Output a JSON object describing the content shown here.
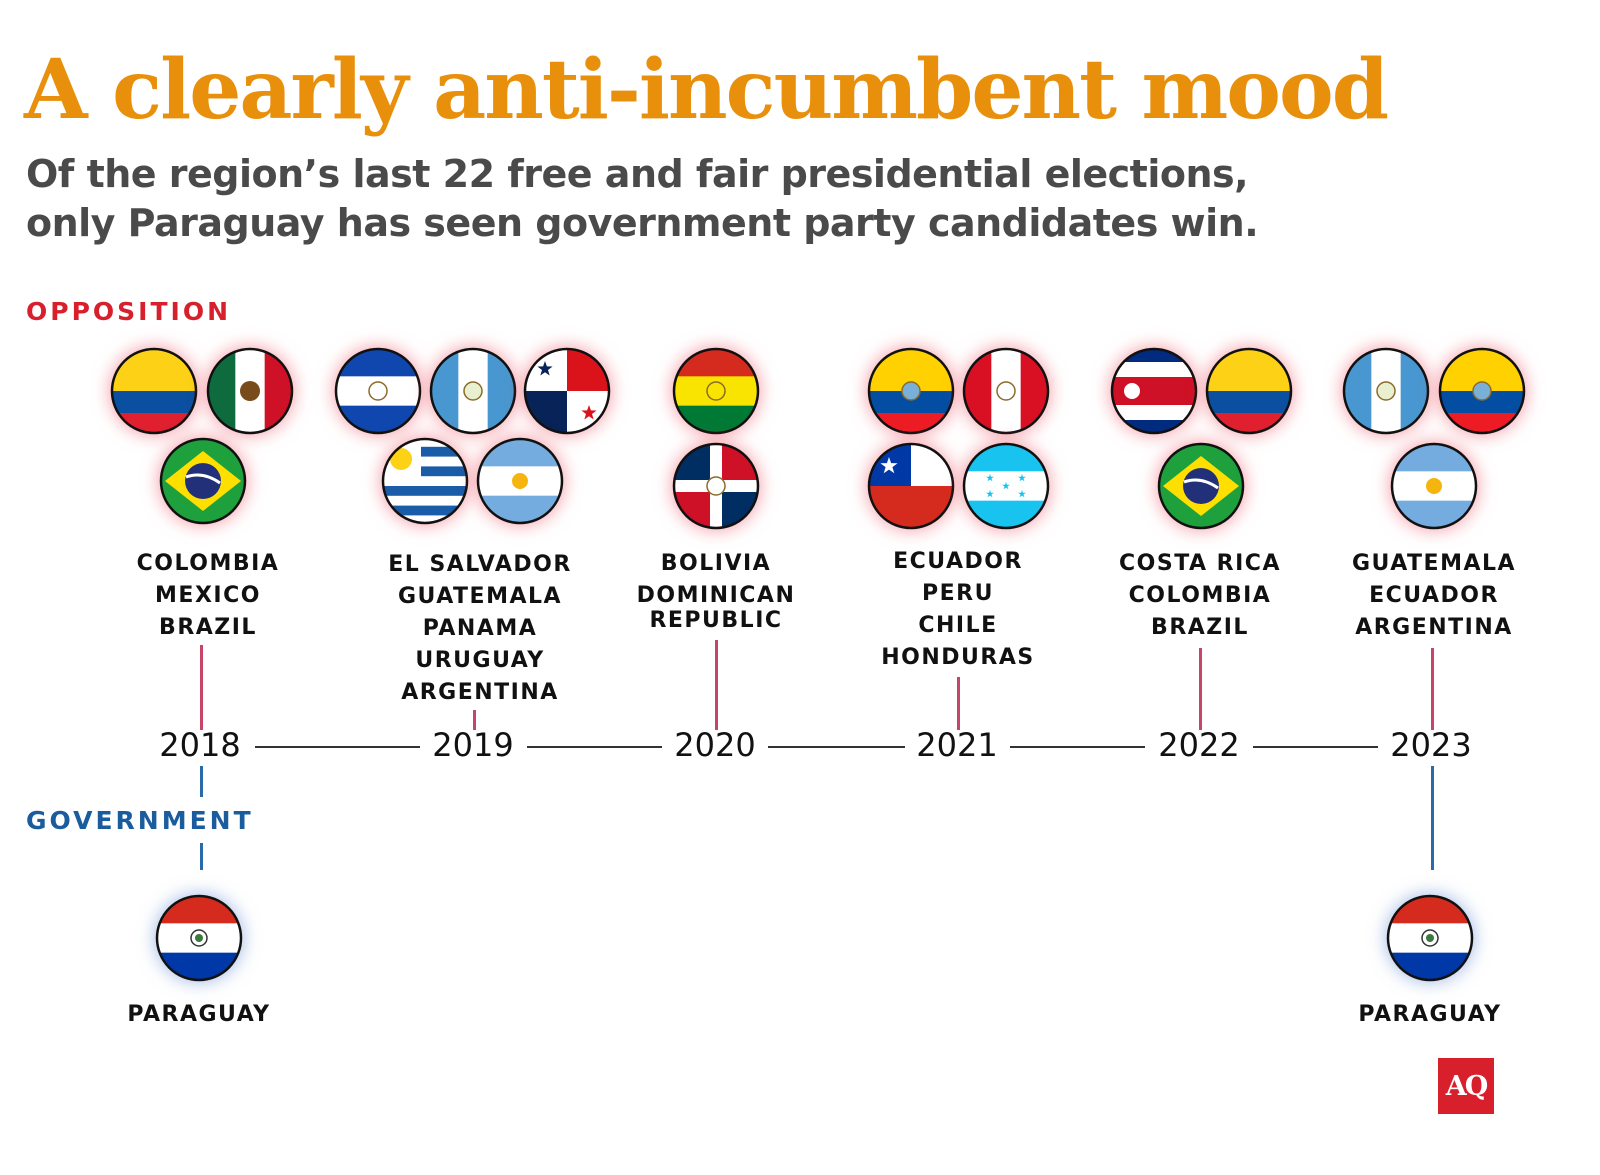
{
  "title": "A clearly anti-incumbent mood",
  "subtitle_line1": "Of the region’s last 22 free and fair presidential elections,",
  "subtitle_line2": "only Paraguay has seen government party candidates win.",
  "opposition_label": "OPPOSITION",
  "government_label": "GOVERNMENT",
  "colors": {
    "title": "#E8900C",
    "opposition": "#D8202C",
    "government": "#1A5C9E",
    "opposition_line": "#C8456A",
    "government_line": "#2A6AA8"
  },
  "years": [
    "2018",
    "2019",
    "2020",
    "2021",
    "2022",
    "2023"
  ],
  "opposition": [
    {
      "year": "2018",
      "countries": [
        "COLOMBIA",
        "MEXICO",
        "BRAZIL"
      ],
      "flags": [
        "co",
        "mx",
        "br"
      ]
    },
    {
      "year": "2019",
      "countries": [
        "EL SALVADOR",
        "GUATEMALA",
        "PANAMA",
        "URUGUAY",
        "ARGENTINA"
      ],
      "flags": [
        "sv",
        "gt",
        "pa",
        "uy",
        "ar"
      ]
    },
    {
      "year": "2020",
      "countries": [
        "BOLIVIA",
        "DOMINICAN",
        "REPUBLIC"
      ],
      "flags": [
        "bo",
        "do"
      ]
    },
    {
      "year": "2021",
      "countries": [
        "ECUADOR",
        "PERU",
        "CHILE",
        "HONDURAS"
      ],
      "flags": [
        "ec",
        "pe",
        "cl",
        "hn"
      ]
    },
    {
      "year": "2022",
      "countries": [
        "COSTA RICA",
        "COLOMBIA",
        "BRAZIL"
      ],
      "flags": [
        "cr",
        "co",
        "br"
      ]
    },
    {
      "year": "2023",
      "countries": [
        "GUATEMALA",
        "ECUADOR",
        "ARGENTINA"
      ],
      "flags": [
        "gt",
        "ec",
        "ar"
      ]
    }
  ],
  "government": [
    {
      "year": "2018",
      "countries": [
        "PARAGUAY"
      ],
      "flags": [
        "py"
      ]
    },
    {
      "year": "2023",
      "countries": [
        "PARAGUAY"
      ],
      "flags": [
        "py"
      ]
    }
  ],
  "logo": "AQ"
}
